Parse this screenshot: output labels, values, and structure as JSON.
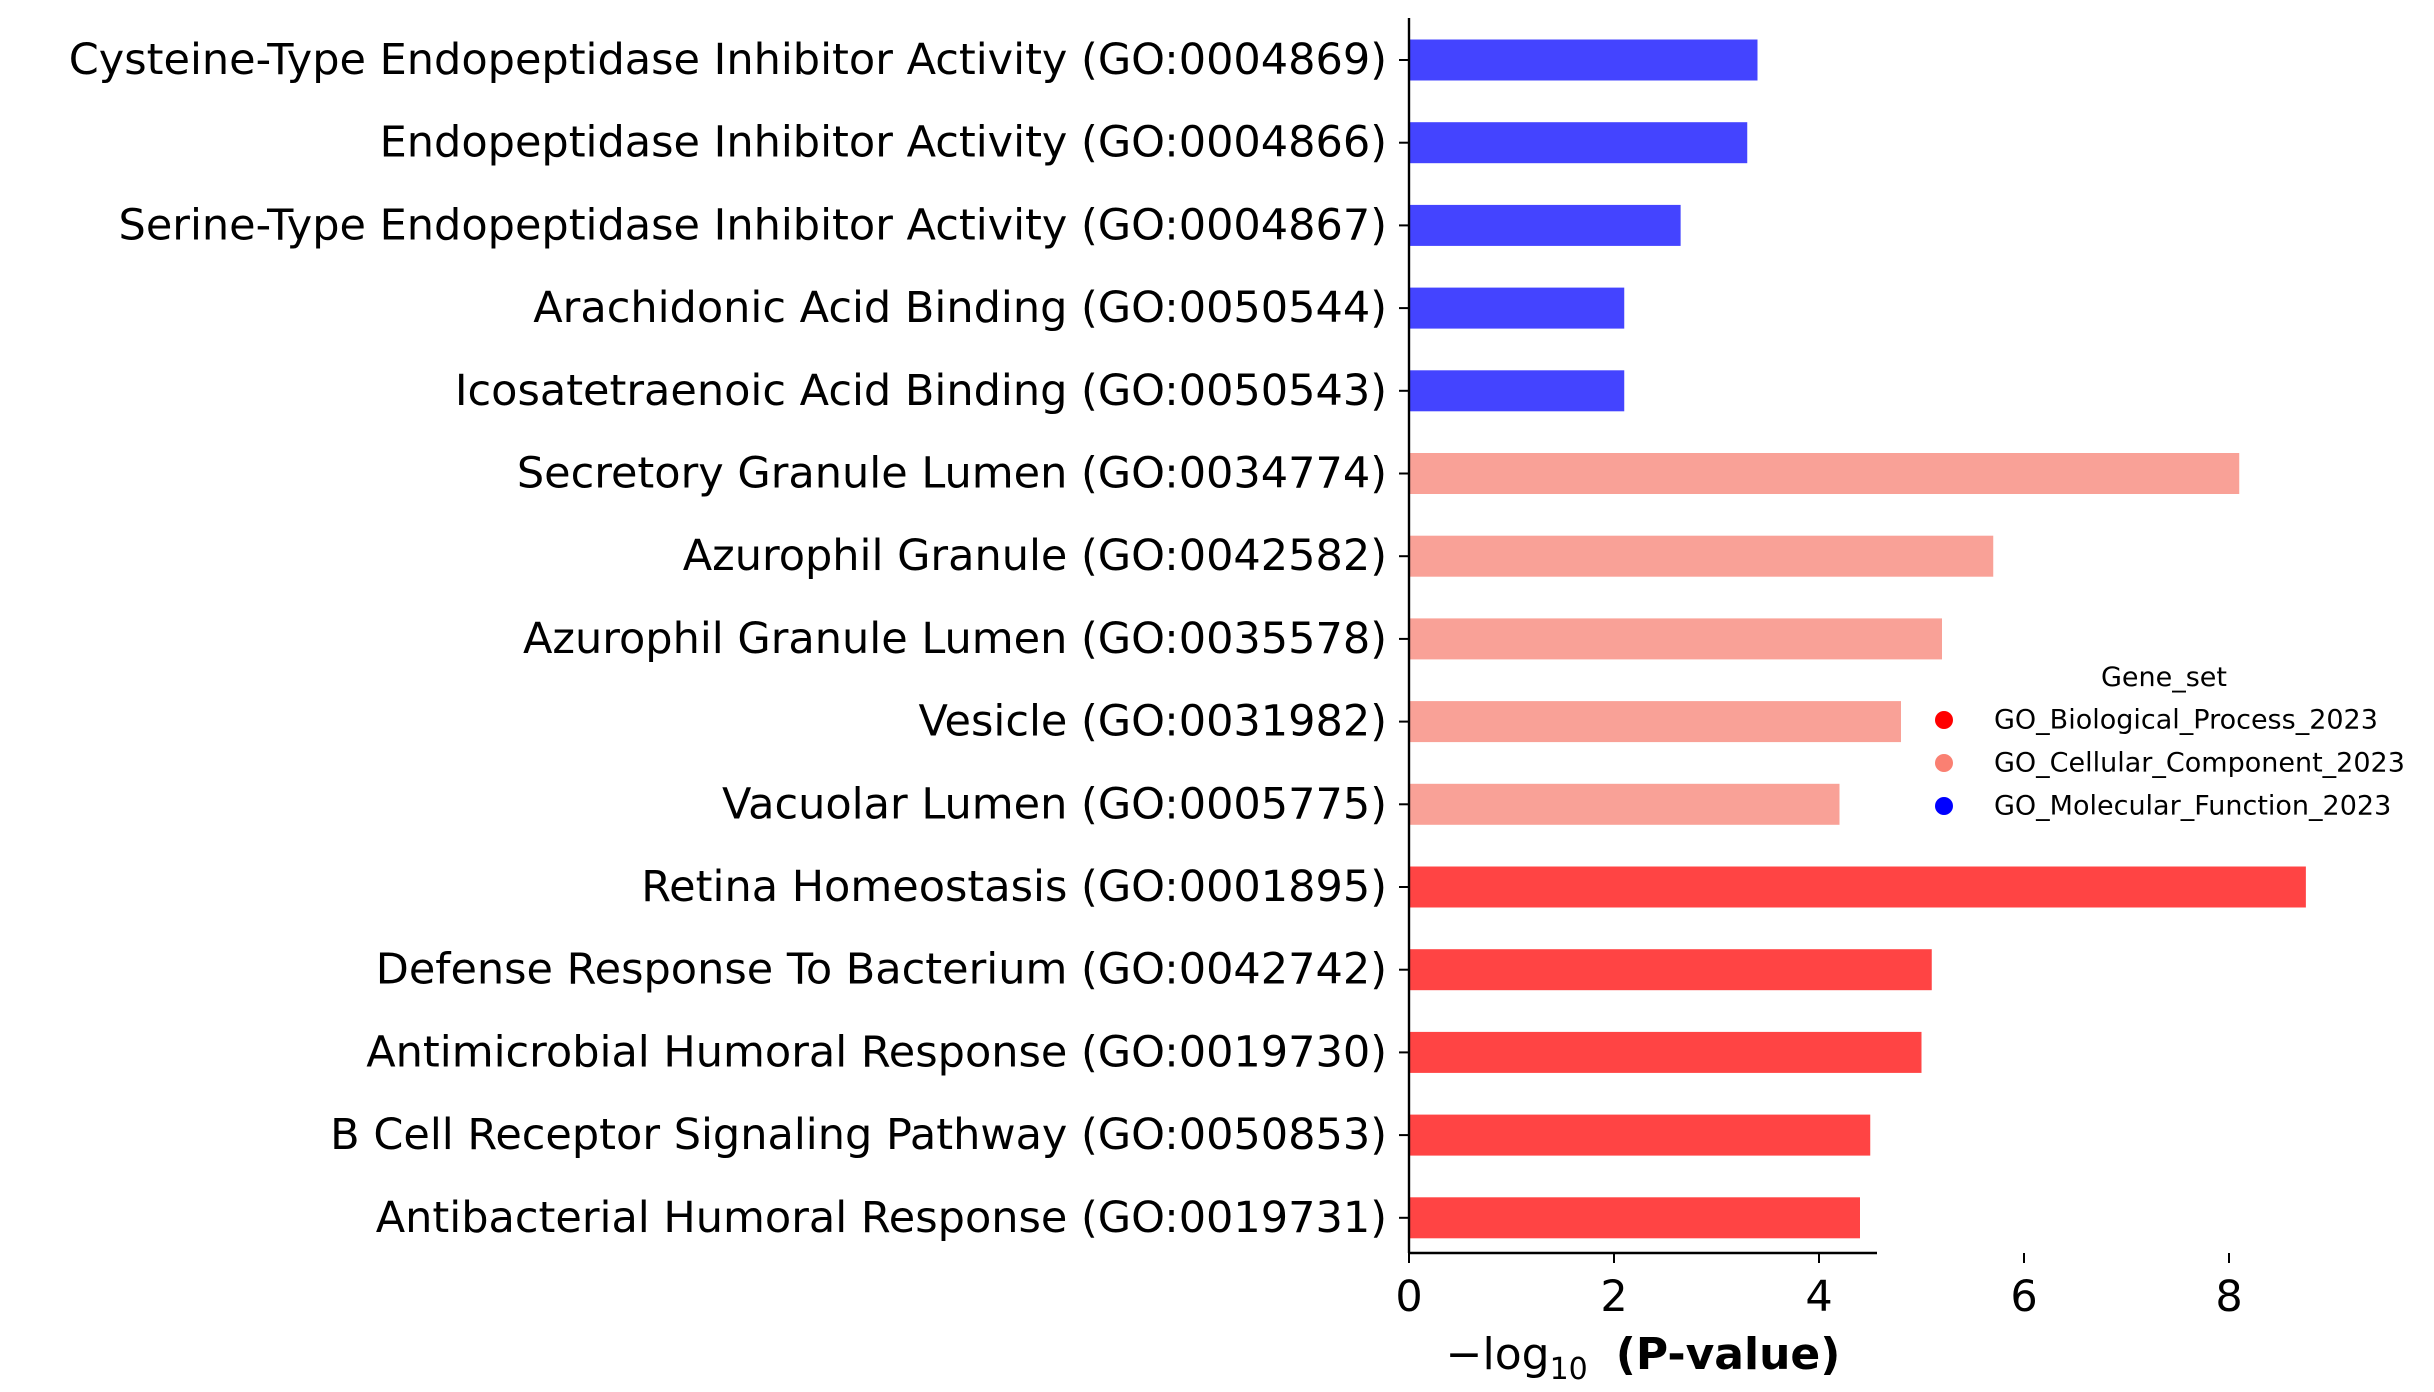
{
  "chart_data": {
    "type": "bar",
    "orientation": "horizontal",
    "categories": [
      "Cysteine-Type Endopeptidase Inhibitor Activity (GO:0004869)",
      "Endopeptidase Inhibitor Activity (GO:0004866)",
      "Serine-Type Endopeptidase Inhibitor Activity (GO:0004867)",
      "Arachidonic Acid Binding (GO:0050544)",
      "Icosatetraenoic Acid Binding (GO:0050543)",
      "Secretory Granule Lumen (GO:0034774)",
      "Azurophil Granule (GO:0042582)",
      "Azurophil Granule Lumen (GO:0035578)",
      "Vesicle (GO:0031982)",
      "Vacuolar Lumen (GO:0005775)",
      "Retina Homeostasis (GO:0001895)",
      "Defense Response To Bacterium (GO:0042742)",
      "Antimicrobial Humoral Response (GO:0019730)",
      "B Cell Receptor Signaling Pathway (GO:0050853)",
      "Antibacterial Humoral Response (GO:0019731)"
    ],
    "values": [
      3.4,
      3.3,
      2.65,
      2.1,
      2.1,
      8.1,
      5.7,
      5.2,
      4.8,
      4.2,
      8.75,
      5.1,
      5.0,
      4.5,
      4.4
    ],
    "gene_set": [
      "GO_Molecular_Function_2023",
      "GO_Molecular_Function_2023",
      "GO_Molecular_Function_2023",
      "GO_Molecular_Function_2023",
      "GO_Molecular_Function_2023",
      "GO_Cellular_Component_2023",
      "GO_Cellular_Component_2023",
      "GO_Cellular_Component_2023",
      "GO_Cellular_Component_2023",
      "GO_Cellular_Component_2023",
      "GO_Biological_Process_2023",
      "GO_Biological_Process_2023",
      "GO_Biological_Process_2023",
      "GO_Biological_Process_2023",
      "GO_Biological_Process_2023"
    ],
    "xlabel_prefix": "−log",
    "xlabel_sub": "10",
    "xlabel_bold": "(P-value)",
    "xlim": [
      0,
      9.2
    ],
    "xticks": [
      0,
      2,
      4,
      6,
      8
    ],
    "grid": false,
    "legend": {
      "title": "Gene_set",
      "placement": "right",
      "entries": [
        {
          "name": "GO_Biological_Process_2023",
          "marker_color": "#ff0000",
          "bar_color": "#ff4444"
        },
        {
          "name": "GO_Cellular_Component_2023",
          "marker_color": "#fa8072",
          "bar_color": "#f9a197"
        },
        {
          "name": "GO_Molecular_Function_2023",
          "marker_color": "#0000ff",
          "bar_color": "#4444ff"
        }
      ]
    }
  }
}
